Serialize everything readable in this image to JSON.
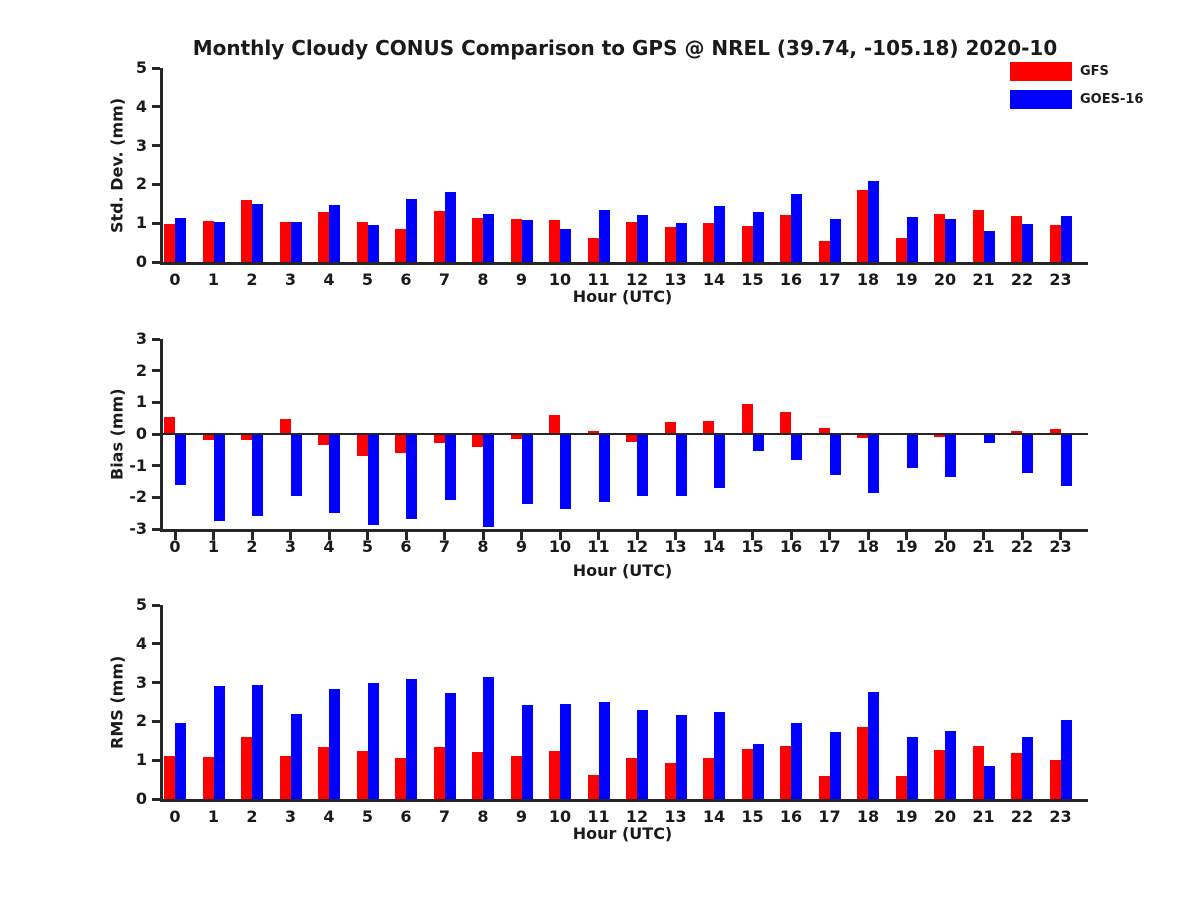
{
  "figure": {
    "background": "#ffffff",
    "axis_color": "#262626"
  },
  "title": "Monthly Cloudy CONUS Comparison to GPS @ NREL (39.74, -105.18) 2020-10",
  "legend": {
    "position": "top-right",
    "items": [
      {
        "label": "GFS",
        "color": "#ff0000"
      },
      {
        "label": "GOES-16",
        "color": "#0000ff"
      }
    ]
  },
  "chart_data": [
    {
      "type": "bar",
      "panel": "std-dev",
      "ylabel": "Std. Dev. (mm)",
      "xlabel": "Hour (UTC)",
      "ylim": [
        0,
        5
      ],
      "yticks": [
        0,
        1,
        2,
        3,
        4,
        5
      ],
      "grid": false,
      "zero_line": false,
      "show_xticks": false,
      "categories": [
        "0",
        "1",
        "2",
        "3",
        "4",
        "5",
        "6",
        "7",
        "8",
        "9",
        "10",
        "11",
        "12",
        "13",
        "14",
        "15",
        "16",
        "17",
        "18",
        "19",
        "20",
        "21",
        "22",
        "23"
      ],
      "series": [
        {
          "name": "GFS",
          "color": "#ff0000",
          "values": [
            0.97,
            1.05,
            1.6,
            1.03,
            1.28,
            1.02,
            0.86,
            1.32,
            1.13,
            1.12,
            1.08,
            0.62,
            1.02,
            0.9,
            1.0,
            0.92,
            1.22,
            0.55,
            1.85,
            0.62,
            1.25,
            1.35,
            1.18,
            0.95
          ]
        },
        {
          "name": "GOES-16",
          "color": "#0000ff",
          "values": [
            1.13,
            1.03,
            1.5,
            1.03,
            1.47,
            0.96,
            1.63,
            1.8,
            1.24,
            1.08,
            0.85,
            1.33,
            1.2,
            1.0,
            1.45,
            1.3,
            1.75,
            1.12,
            2.08,
            1.17,
            1.1,
            0.8,
            0.98,
            1.18
          ]
        }
      ]
    },
    {
      "type": "bar",
      "panel": "bias",
      "ylabel": "Bias (mm)",
      "xlabel": "Hour (UTC)",
      "ylim": [
        -3,
        3
      ],
      "yticks": [
        -3,
        -2,
        -1,
        0,
        1,
        2,
        3
      ],
      "grid": false,
      "zero_line": true,
      "show_xticks": true,
      "categories": [
        "0",
        "1",
        "2",
        "3",
        "4",
        "5",
        "6",
        "7",
        "8",
        "9",
        "10",
        "11",
        "12",
        "13",
        "14",
        "15",
        "16",
        "17",
        "18",
        "19",
        "20",
        "21",
        "22",
        "23"
      ],
      "series": [
        {
          "name": "GFS",
          "color": "#ff0000",
          "values": [
            0.55,
            -0.2,
            -0.2,
            0.47,
            -0.35,
            -0.7,
            -0.6,
            -0.28,
            -0.42,
            -0.15,
            0.6,
            0.1,
            -0.25,
            0.38,
            0.42,
            0.95,
            0.68,
            0.2,
            -0.12,
            -0.02,
            -0.1,
            -0.02,
            0.1,
            0.16
          ]
        },
        {
          "name": "GOES-16",
          "color": "#0000ff",
          "values": [
            -1.6,
            -2.75,
            -2.58,
            -1.97,
            -2.48,
            -2.87,
            -2.68,
            -2.08,
            -2.93,
            -2.2,
            -2.38,
            -2.15,
            -1.95,
            -1.95,
            -1.7,
            -0.55,
            -0.83,
            -1.3,
            -1.85,
            -1.08,
            -1.35,
            -0.28,
            -1.22,
            -1.65
          ]
        }
      ]
    },
    {
      "type": "bar",
      "panel": "rms",
      "ylabel": "RMS (mm)",
      "xlabel": "Hour (UTC)",
      "ylim": [
        0,
        5
      ],
      "yticks": [
        0,
        1,
        2,
        3,
        4,
        5
      ],
      "grid": false,
      "zero_line": false,
      "show_xticks": false,
      "categories": [
        "0",
        "1",
        "2",
        "3",
        "4",
        "5",
        "6",
        "7",
        "8",
        "9",
        "10",
        "11",
        "12",
        "13",
        "14",
        "15",
        "16",
        "17",
        "18",
        "19",
        "20",
        "21",
        "22",
        "23"
      ],
      "series": [
        {
          "name": "GFS",
          "color": "#ff0000",
          "values": [
            1.1,
            1.08,
            1.6,
            1.1,
            1.33,
            1.25,
            1.05,
            1.33,
            1.2,
            1.1,
            1.23,
            0.62,
            1.06,
            0.94,
            1.06,
            1.3,
            1.37,
            0.6,
            1.85,
            0.58,
            1.26,
            1.37,
            1.18,
            1.0
          ]
        },
        {
          "name": "GOES-16",
          "color": "#0000ff",
          "values": [
            1.95,
            2.9,
            2.95,
            2.2,
            2.84,
            3.0,
            3.1,
            2.72,
            3.15,
            2.43,
            2.46,
            2.5,
            2.3,
            2.17,
            2.25,
            1.42,
            1.96,
            1.72,
            2.76,
            1.6,
            1.76,
            0.84,
            1.6,
            2.03
          ]
        }
      ]
    }
  ]
}
